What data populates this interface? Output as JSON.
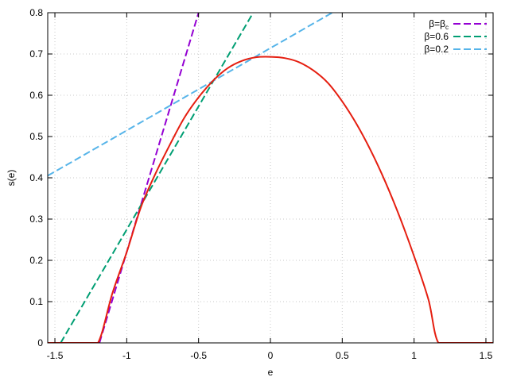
{
  "chart_data": {
    "type": "line",
    "title": "",
    "xlabel": "e",
    "ylabel": "s(e)",
    "xlim": [
      -1.55,
      1.55
    ],
    "ylim": [
      0,
      0.8
    ],
    "grid": true,
    "legend_position": "top-right",
    "xticks": [
      {
        "value": -1.5,
        "label": "-1.5"
      },
      {
        "value": -1,
        "label": "-1"
      },
      {
        "value": -0.5,
        "label": "-0.5"
      },
      {
        "value": 0,
        "label": "0"
      },
      {
        "value": 0.5,
        "label": "0.5"
      },
      {
        "value": 1,
        "label": "1"
      },
      {
        "value": 1.5,
        "label": "1.5"
      }
    ],
    "yticks": [
      {
        "value": 0,
        "label": "0"
      },
      {
        "value": 0.1,
        "label": "0.1"
      },
      {
        "value": 0.2,
        "label": "0.2"
      },
      {
        "value": 0.3,
        "label": "0.3"
      },
      {
        "value": 0.4,
        "label": "0.4"
      },
      {
        "value": 0.5,
        "label": "0.5"
      },
      {
        "value": 0.6,
        "label": "0.6"
      },
      {
        "value": 0.7,
        "label": "0.7"
      },
      {
        "value": 0.8,
        "label": "0.8"
      }
    ],
    "curve": {
      "color": "#e51e10",
      "x": [
        -1.55,
        -1.3,
        -1.2,
        -1.1,
        -1.0,
        -0.9,
        -0.8,
        -0.7,
        -0.6,
        -0.5,
        -0.4,
        -0.3,
        -0.2,
        -0.1,
        0.0,
        0.1,
        0.2,
        0.3,
        0.4,
        0.5,
        0.6,
        0.7,
        0.8,
        0.9,
        1.0,
        1.1,
        1.17,
        1.3,
        1.55
      ],
      "y": [
        0.0,
        0.0,
        0.0,
        0.12,
        0.22,
        0.33,
        0.41,
        0.48,
        0.545,
        0.595,
        0.635,
        0.665,
        0.683,
        0.692,
        0.693,
        0.69,
        0.68,
        0.66,
        0.63,
        0.585,
        0.53,
        0.465,
        0.39,
        0.305,
        0.21,
        0.105,
        0.0,
        0.0,
        0.0
      ]
    },
    "series": [
      {
        "label_main": "β=β",
        "label_sub": "c",
        "color": "#9400d3",
        "x": [
          -1.19,
          -0.5
        ],
        "y": [
          0.0,
          0.8
        ]
      },
      {
        "label_main": "β=0.6",
        "label_sub": "",
        "color": "#009e73",
        "x": [
          -1.46,
          -0.12
        ],
        "y": [
          0.0,
          0.8
        ]
      },
      {
        "label_main": "β=0.2",
        "label_sub": "",
        "color": "#56b4e9",
        "x": [
          -1.55,
          0.43
        ],
        "y": [
          0.405,
          0.8
        ]
      }
    ]
  }
}
